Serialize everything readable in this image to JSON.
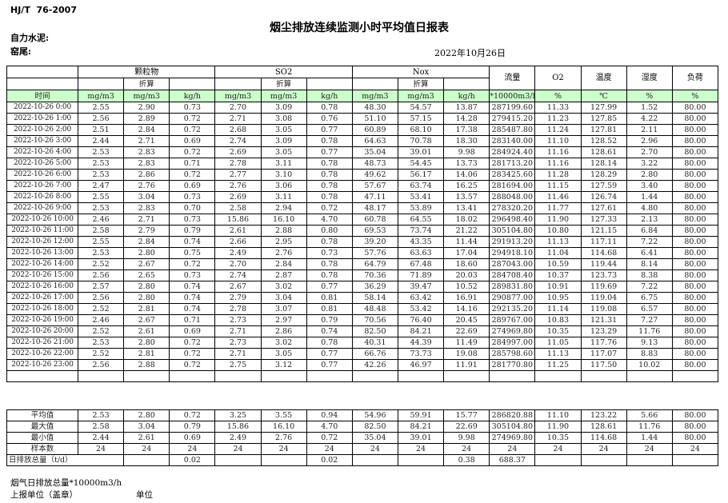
{
  "page": {
    "doc_code": "HJ/T  76-2007",
    "title": "烟尘排放连续监测小时平均值日报表",
    "company": "自力水泥:",
    "location": "窑尾:",
    "date": "2022年10月26日"
  },
  "colors": {
    "header_green": "#ccffcc",
    "border": "#000000"
  },
  "table": {
    "time_label": "时间",
    "converted_label": "折算",
    "groups": {
      "pm": "颗粒物",
      "so2": "SO2",
      "nox": "Nox",
      "flow": "流量",
      "o2": "O2",
      "temp": "温度",
      "humidity": "湿度",
      "load": "负荷"
    },
    "units": [
      "mg/m3",
      "mg/m3",
      "kg/h",
      "mg/m3",
      "mg/m3",
      "kg/h",
      "mg/m3",
      "mg/m3",
      "kg/h",
      "*10000m3/h",
      "%",
      "℃",
      "%",
      "%"
    ],
    "rows": [
      {
        "time": "2022-10-26 0:00",
        "values": [
          "2.55",
          "2.90",
          "0.73",
          "2.70",
          "3.09",
          "0.78",
          "48.30",
          "54.57",
          "13.87",
          "287199.60",
          "11.33",
          "127.99",
          "1.52",
          "80.00"
        ]
      },
      {
        "time": "2022-10-26 1:00",
        "values": [
          "2.56",
          "2.89",
          "0.72",
          "2.71",
          "3.08",
          "0.76",
          "51.10",
          "57.15",
          "14.28",
          "279415.20",
          "11.23",
          "127.85",
          "4.22",
          "80.00"
        ]
      },
      {
        "time": "2022-10-26 2:00",
        "values": [
          "2.51",
          "2.84",
          "0.72",
          "2.68",
          "3.05",
          "0.77",
          "60.89",
          "68.10",
          "17.38",
          "285487.80",
          "11.24",
          "127.81",
          "2.11",
          "80.00"
        ]
      },
      {
        "time": "2022-10-26 3:00",
        "values": [
          "2.44",
          "2.71",
          "0.69",
          "2.74",
          "3.09",
          "0.78",
          "64.63",
          "70.78",
          "18.30",
          "283140.00",
          "11.10",
          "128.52",
          "2.96",
          "80.00"
        ]
      },
      {
        "time": "2022-10-26 4:00",
        "values": [
          "2.53",
          "2.83",
          "0.72",
          "2.69",
          "3.05",
          "0.77",
          "35.04",
          "39.01",
          "9.98",
          "284924.40",
          "11.16",
          "128.61",
          "2.70",
          "80.00"
        ]
      },
      {
        "time": "2022-10-26 5:00",
        "values": [
          "2.53",
          "2.83",
          "0.71",
          "2.78",
          "3.11",
          "0.78",
          "48.73",
          "54.45",
          "13.73",
          "281713.20",
          "11.16",
          "128.14",
          "3.22",
          "80.00"
        ]
      },
      {
        "time": "2022-10-26 6:00",
        "values": [
          "2.53",
          "2.86",
          "0.72",
          "2.77",
          "3.10",
          "0.78",
          "49.62",
          "56.17",
          "14.06",
          "283425.60",
          "11.28",
          "128.29",
          "2.80",
          "80.00"
        ]
      },
      {
        "time": "2022-10-26 7:00",
        "values": [
          "2.47",
          "2.76",
          "0.69",
          "2.76",
          "3.06",
          "0.78",
          "57.67",
          "63.74",
          "16.25",
          "281694.00",
          "11.15",
          "127.59",
          "3.40",
          "80.00"
        ]
      },
      {
        "time": "2022-10-26 8:00",
        "values": [
          "2.55",
          "3.04",
          "0.73",
          "2.69",
          "3.11",
          "0.78",
          "47.11",
          "53.41",
          "13.57",
          "288048.00",
          "11.46",
          "126.74",
          "1.44",
          "80.00"
        ]
      },
      {
        "time": "2022-10-26 9:00",
        "values": [
          "2.53",
          "2.83",
          "0.70",
          "2.58",
          "2.94",
          "0.72",
          "48.17",
          "53.89",
          "13.41",
          "278320.20",
          "11.77",
          "127.61",
          "4.80",
          "80.00"
        ]
      },
      {
        "time": "2022-10-26 10:00",
        "values": [
          "2.46",
          "2.71",
          "0.73",
          "15.86",
          "16.10",
          "4.70",
          "60.78",
          "64.55",
          "18.02",
          "296498.40",
          "11.90",
          "127.33",
          "2.13",
          "80.00"
        ]
      },
      {
        "time": "2022-10-26 11:00",
        "values": [
          "2.58",
          "2.79",
          "0.79",
          "2.61",
          "2.88",
          "0.80",
          "69.53",
          "73.74",
          "21.22",
          "305104.80",
          "10.80",
          "121.15",
          "6.84",
          "80.00"
        ]
      },
      {
        "time": "2022-10-26 12:00",
        "values": [
          "2.55",
          "2.84",
          "0.74",
          "2.66",
          "2.95",
          "0.78",
          "39.20",
          "43.35",
          "11.44",
          "291913.20",
          "11.13",
          "117.11",
          "7.22",
          "80.00"
        ]
      },
      {
        "time": "2022-10-26 13:00",
        "values": [
          "2.53",
          "2.80",
          "0.75",
          "2.49",
          "2.76",
          "0.73",
          "57.76",
          "63.63",
          "17.04",
          "294918.10",
          "11.04",
          "114.68",
          "6.41",
          "80.00"
        ]
      },
      {
        "time": "2022-10-26 14:00",
        "values": [
          "2.52",
          "2.67",
          "0.72",
          "2.70",
          "2.84",
          "0.78",
          "64.79",
          "67.48",
          "18.60",
          "287043.00",
          "10.59",
          "119.44",
          "8.14",
          "80.00"
        ]
      },
      {
        "time": "2022-10-26 15:00",
        "values": [
          "2.56",
          "2.65",
          "0.73",
          "2.74",
          "2.87",
          "0.78",
          "70.36",
          "71.89",
          "20.03",
          "284708.40",
          "10.37",
          "123.73",
          "8.38",
          "80.00"
        ]
      },
      {
        "time": "2022-10-26 16:00",
        "values": [
          "2.57",
          "2.80",
          "0.74",
          "2.67",
          "3.02",
          "0.77",
          "36.29",
          "39.47",
          "10.52",
          "289831.80",
          "10.91",
          "119.69",
          "7.22",
          "80.00"
        ]
      },
      {
        "time": "2022-10-26 17:00",
        "values": [
          "2.56",
          "2.80",
          "0.74",
          "2.79",
          "3.04",
          "0.81",
          "58.14",
          "63.42",
          "16.91",
          "290877.00",
          "10.95",
          "119.04",
          "6.75",
          "80.00"
        ]
      },
      {
        "time": "2022-10-26 18:00",
        "values": [
          "2.52",
          "2.81",
          "0.74",
          "2.78",
          "3.07",
          "0.81",
          "48.48",
          "53.42",
          "14.16",
          "292135.20",
          "11.14",
          "119.08",
          "6.57",
          "80.00"
        ]
      },
      {
        "time": "2022-10-26 19:00",
        "values": [
          "2.46",
          "2.67",
          "0.71",
          "2.73",
          "2.97",
          "0.79",
          "70.56",
          "76.40",
          "20.45",
          "289767.00",
          "10.83",
          "121.31",
          "7.27",
          "80.00"
        ]
      },
      {
        "time": "2022-10-26 20:00",
        "values": [
          "2.52",
          "2.61",
          "0.69",
          "2.71",
          "2.86",
          "0.74",
          "82.50",
          "84.21",
          "22.69",
          "274969.80",
          "10.35",
          "123.29",
          "11.76",
          "80.00"
        ]
      },
      {
        "time": "2022-10-26 21:00",
        "values": [
          "2.53",
          "2.80",
          "0.72",
          "2.73",
          "3.02",
          "0.78",
          "40.31",
          "44.39",
          "11.49",
          "284997.00",
          "11.05",
          "117.76",
          "9.13",
          "80.00"
        ]
      },
      {
        "time": "2022-10-26 22:00",
        "values": [
          "2.52",
          "2.81",
          "0.72",
          "2.71",
          "3.05",
          "0.77",
          "66.76",
          "73.73",
          "19.08",
          "285798.60",
          "11.13",
          "117.07",
          "8.83",
          "80.00"
        ]
      },
      {
        "time": "2022-10-26 23:00",
        "values": [
          "2.56",
          "2.88",
          "0.72",
          "2.75",
          "3.12",
          "0.77",
          "42.26",
          "46.97",
          "11.91",
          "281770.80",
          "11.25",
          "117.50",
          "10.02",
          "80.00"
        ]
      }
    ],
    "summary": [
      {
        "label": "平均值",
        "values": [
          "2.53",
          "2.80",
          "0.72",
          "3.25",
          "3.55",
          "0.94",
          "54.96",
          "59.91",
          "15.77",
          "286820.88",
          "11.10",
          "123.22",
          "5.66",
          "80.00"
        ]
      },
      {
        "label": "最大值",
        "values": [
          "2.58",
          "3.04",
          "0.79",
          "15.86",
          "16.10",
          "4.70",
          "82.50",
          "84.21",
          "22.69",
          "305104.80",
          "11.90",
          "128.61",
          "11.76",
          "80.00"
        ]
      },
      {
        "label": "最小值",
        "values": [
          "2.44",
          "2.61",
          "0.69",
          "2.49",
          "2.76",
          "0.72",
          "35.04",
          "39.01",
          "9.98",
          "274969.80",
          "10.35",
          "114.68",
          "1.44",
          "80.00"
        ]
      },
      {
        "label": "样本数",
        "values": [
          "24",
          "24",
          "24",
          "24",
          "24",
          "24",
          "24",
          "24",
          "24",
          "24",
          "24",
          "24",
          "24",
          "24"
        ]
      }
    ],
    "daily_total": {
      "label": "日排放总量（t/d）",
      "values": [
        "",
        "0.02",
        "",
        "",
        "0.02",
        "",
        "",
        "0.38",
        "688.37",
        "",
        "",
        "",
        ""
      ]
    }
  },
  "footer": {
    "flue_total": "烟气日排放总量*10000m3/h",
    "report_unit": "上报单位（盖章）",
    "unit": "单位"
  }
}
